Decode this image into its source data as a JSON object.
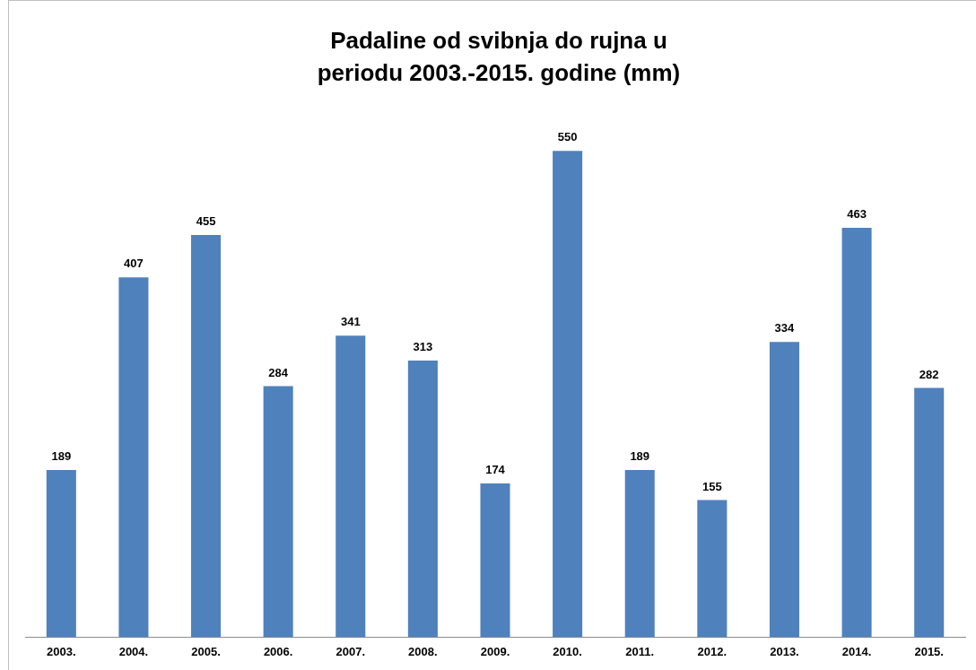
{
  "chart_data": {
    "type": "bar",
    "title": "Padaline od svibnja do rujna u periodu 2003.-2015. godine (mm)",
    "categories": [
      "2003.",
      "2004.",
      "2005.",
      "2006.",
      "2007.",
      "2008.",
      "2009.",
      "2010.",
      "2011.",
      "2012.",
      "2013.",
      "2014.",
      "2015."
    ],
    "values": [
      189,
      407,
      455,
      284,
      341,
      313,
      174,
      550,
      189,
      155,
      334,
      463,
      282
    ],
    "color": "#4f81bd",
    "tick_labels": "x",
    "data_labels": true
  }
}
